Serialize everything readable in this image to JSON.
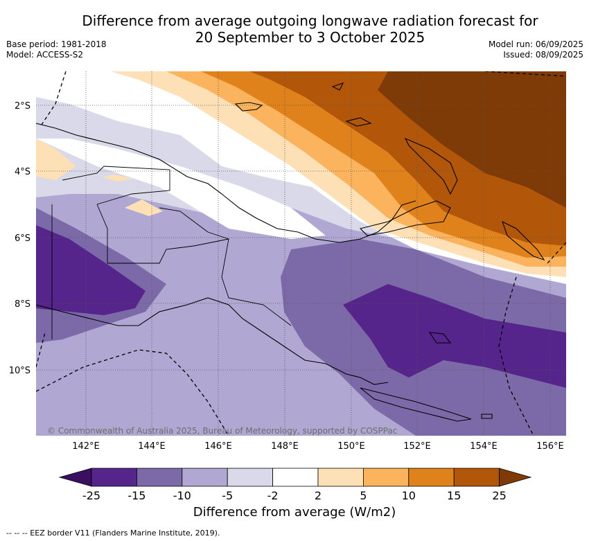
{
  "title": "Difference from average outgoing longwave radiation forecast for\n20 September to 3 October 2025",
  "title_line1": "Difference from average outgoing longwave radiation forecast for",
  "title_line2": "20 September to 3 October 2025",
  "base_period": "Base period: 1981-2018",
  "model": "Model: ACCESS-S2",
  "model_run": "Model run: 06/09/2025",
  "issued": "Issued: 08/09/2025",
  "credit": "© Commonwealth of Australia 2025, Bureau of Meteorology, supported by COSPPac",
  "lat_labels": [
    "2°S",
    "4°S",
    "6°S",
    "8°S",
    "10°S"
  ],
  "lon_labels": [
    "142°E",
    "144°E",
    "146°E",
    "148°E",
    "150°E",
    "152°E",
    "154°E",
    "156°E"
  ],
  "colorbar": {
    "title": "Difference from average (W/m2)",
    "ticks": [
      "-25",
      "-15",
      "-10",
      "-5",
      "-2",
      "2",
      "5",
      "10",
      "15",
      "25"
    ],
    "colors": [
      "#3b0f5f",
      "#55258b",
      "#7c6aa8",
      "#b0a8d2",
      "#d9d9ea",
      "#ffffff",
      "#fde0b6",
      "#fbb35d",
      "#e0821b",
      "#b25709",
      "#7e3b08"
    ]
  },
  "footer": "--  --  -- EEZ border V11 (Flanders Marine Institute, 2019)."
}
